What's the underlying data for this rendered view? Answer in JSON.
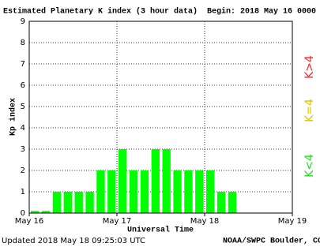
{
  "chart_data": {
    "type": "bar",
    "title": "Estimated Planetary K index (3 hour data)",
    "begin": "Begin:  2018 May 16 0000",
    "y_label": "Kp index",
    "x_label": "Universal Time",
    "updated": "Updated 2018 May 18 09:25:03 UTC",
    "source": "NOAA/SWPC Boulder, CO USA",
    "legend": [
      {
        "name": "K<4",
        "color": "#22dd22"
      },
      {
        "name": "K=4",
        "color": "#e8c000"
      },
      {
        "name": "K>4",
        "color": "#ff2020"
      }
    ],
    "categories": [
      null,
      null,
      null,
      null,
      null,
      null,
      null,
      null,
      null,
      null,
      null,
      null,
      null,
      null,
      null,
      null,
      null,
      null,
      null,
      null,
      null,
      null,
      null,
      null
    ],
    "values": [
      0.1,
      0.1,
      1,
      1,
      1,
      1,
      2,
      2,
      3,
      2,
      2,
      3,
      3,
      2,
      2,
      2,
      2,
      1,
      1,
      null,
      null,
      null,
      null,
      null
    ],
    "color": "#00ff00",
    "xlim": [
      0,
      24
    ],
    "xticks": [
      {
        "value": 0,
        "label": "May 16"
      },
      {
        "value": 8,
        "label": "May 17"
      },
      {
        "value": 16,
        "label": "May 18"
      },
      {
        "value": 24,
        "label": "May 19"
      }
    ],
    "ylim": [
      0,
      9
    ],
    "yticks": [
      0,
      1,
      2,
      3,
      4,
      5,
      6,
      7,
      8,
      9
    ],
    "grid": true
  }
}
